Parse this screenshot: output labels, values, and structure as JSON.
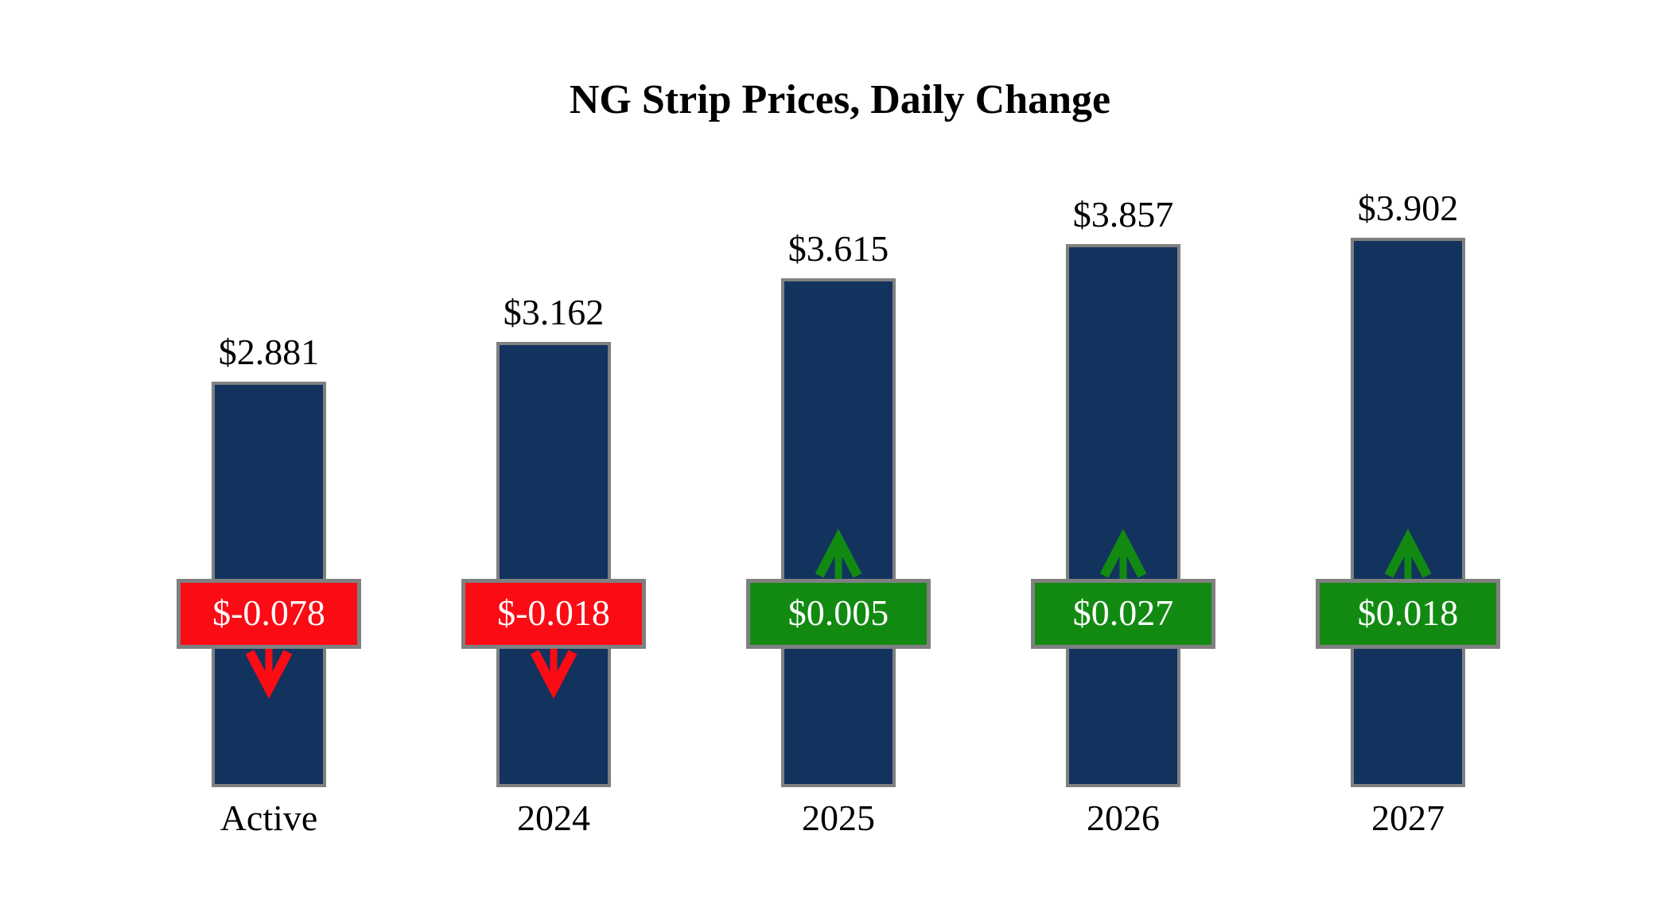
{
  "chart_data": {
    "type": "bar",
    "title": "NG Strip Prices, Daily Change",
    "xlabel": "",
    "ylabel": "",
    "ylim": [
      0,
      4.4
    ],
    "grid": false,
    "legend": false,
    "categories": [
      "Active",
      "2024",
      "2025",
      "2026",
      "2027"
    ],
    "series": [
      {
        "name": "strip_price",
        "values": [
          2.881,
          3.162,
          3.615,
          3.857,
          3.902
        ]
      },
      {
        "name": "daily_change",
        "values": [
          -0.078,
          -0.018,
          0.005,
          0.027,
          0.018
        ]
      }
    ],
    "bars": [
      {
        "category": "Active",
        "price": 2.881,
        "price_label": "$2.881",
        "change": -0.078,
        "change_label": "$-0.078",
        "direction": "down"
      },
      {
        "category": "2024",
        "price": 3.162,
        "price_label": "$3.162",
        "change": -0.018,
        "change_label": "$-0.018",
        "direction": "down"
      },
      {
        "category": "2025",
        "price": 3.615,
        "price_label": "$3.615",
        "change": 0.005,
        "change_label": "$0.005",
        "direction": "up"
      },
      {
        "category": "2026",
        "price": 3.857,
        "price_label": "$3.857",
        "change": 0.027,
        "change_label": "$0.027",
        "direction": "up"
      },
      {
        "category": "2027",
        "price": 3.902,
        "price_label": "$3.902",
        "change": 0.018,
        "change_label": "$0.018",
        "direction": "up"
      }
    ],
    "colors": {
      "bar_fill": "#12335E",
      "bar_border": "#808080",
      "negative_badge": "#FB0B14",
      "positive_badge": "#128A12",
      "badge_border": "#808080",
      "badge_text": "#FFFFFF",
      "label_text": "#000000",
      "background": "#FFFFFF"
    }
  }
}
